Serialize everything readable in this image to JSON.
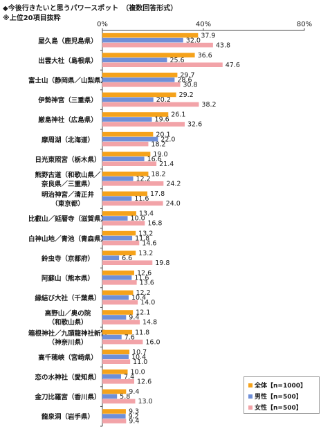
{
  "title": "◆今後行きたいと思うパワースポット　（複数回答形式）",
  "subtitle": "※上位20項目抜粋",
  "colors": {
    "all": "#F5A21B",
    "male": "#6F8FD8",
    "female": "#F2A3A8"
  },
  "legend": [
    {
      "key": "all",
      "label": "全体【n=1000】"
    },
    {
      "key": "male",
      "label": "男性【n=500】"
    },
    {
      "key": "female",
      "label": "女性【n=500】"
    }
  ],
  "chart_data": {
    "type": "bar",
    "orientation": "horizontal",
    "xlim": [
      0,
      80
    ],
    "ticks": [
      "0%",
      "40%",
      "80%"
    ],
    "grid": false,
    "legend_position": "bottom-right",
    "categories": [
      [
        "屋久島（鹿児島県）"
      ],
      [
        "出雲大社（島根県）"
      ],
      [
        "富士山（静岡県／山梨県）"
      ],
      [
        "伊勢神宮（三重県）"
      ],
      [
        "厳島神社（広島県）"
      ],
      [
        "摩周湖（北海道）"
      ],
      [
        "日光東照宮（栃木県）"
      ],
      [
        "熊野古道（和歌山県／",
        "奈良県／三重県）"
      ],
      [
        "明治神宮／清正井",
        "（東京都）"
      ],
      [
        "比叡山／延暦寺（滋賀県）"
      ],
      [
        "白神山地／青池（青森県）"
      ],
      [
        "鈴虫寺（京都府）"
      ],
      [
        "阿蘇山（熊本県）"
      ],
      [
        "縁結び大社（千葉県）"
      ],
      [
        "高野山／奥の院",
        "（和歌山県）"
      ],
      [
        "箱根神社／九頭龍神社新宮",
        "（神奈川県）"
      ],
      [
        "高千穂峡（宮崎県）"
      ],
      [
        "恋の水神社（愛知県）"
      ],
      [
        "金刀比羅宮（香川県）"
      ],
      [
        "龍泉洞（岩手県）"
      ]
    ],
    "series": [
      {
        "name": "全体【n=1000】",
        "key": "all",
        "values": [
          37.9,
          36.6,
          29.7,
          29.2,
          26.1,
          20.1,
          19.0,
          18.2,
          17.8,
          13.4,
          13.2,
          13.2,
          12.6,
          12.2,
          12.1,
          11.8,
          10.7,
          10.0,
          9.4,
          9.3
        ]
      },
      {
        "name": "男性【n=500】",
        "key": "male",
        "values": [
          32.0,
          25.6,
          28.6,
          20.2,
          19.6,
          22.0,
          16.6,
          12.2,
          11.6,
          10.0,
          11.8,
          6.6,
          11.6,
          10.4,
          9.4,
          7.6,
          10.4,
          7.4,
          5.8,
          9.2
        ]
      },
      {
        "name": "女性【n=500】",
        "key": "female",
        "values": [
          43.8,
          47.6,
          30.8,
          38.2,
          32.6,
          18.2,
          21.4,
          24.2,
          24.0,
          16.8,
          14.6,
          19.8,
          13.6,
          14.0,
          14.8,
          16.0,
          11.0,
          12.6,
          13.0,
          9.4
        ]
      }
    ]
  }
}
